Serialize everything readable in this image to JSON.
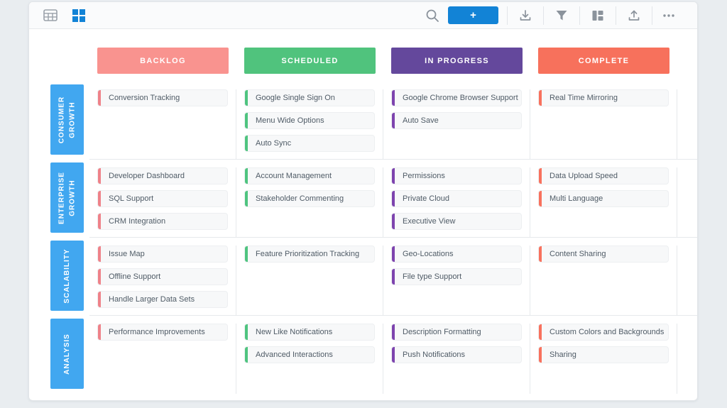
{
  "toolbar": {
    "view_switcher": [
      {
        "icon": "table-view-icon",
        "active": false
      },
      {
        "icon": "grid-view-icon",
        "active": true
      }
    ],
    "search_icon": "search-icon",
    "add_button_label": "+",
    "actions": [
      {
        "icon": "import-download-icon"
      },
      {
        "icon": "filter-icon"
      },
      {
        "icon": "layout-icon"
      },
      {
        "icon": "export-upload-icon"
      },
      {
        "icon": "more-options-icon"
      }
    ]
  },
  "colors": {
    "accent_blue": "#1283d6",
    "row_label_blue": "#41a7f0",
    "icon_gray": "#8b939c",
    "backlog": "#f9938f",
    "backlog_accent": "#ef8289",
    "scheduled": "#50c37d",
    "scheduled_accent": "#4ec47f",
    "in_progress": "#64489c",
    "in_progress_accent": "#7d43ae",
    "complete": "#f7715c",
    "complete_accent": "#f8715d"
  },
  "board": {
    "columns": [
      {
        "label": "BACKLOG",
        "color": "#f9938f",
        "accent": "#ef8289"
      },
      {
        "label": "SCHEDULED",
        "color": "#50c37d",
        "accent": "#4ec47f"
      },
      {
        "label": "IN PROGRESS",
        "color": "#64489c",
        "accent": "#7d43ae"
      },
      {
        "label": "COMPLETE",
        "color": "#f7715c",
        "accent": "#f8715d"
      }
    ],
    "rows": [
      {
        "label": "CONSUMER GROWTH",
        "cells": [
          [
            "Conversion Tracking"
          ],
          [
            "Google Single Sign On",
            "Menu Wide Options",
            "Auto Sync"
          ],
          [
            "Google Chrome Browser Support",
            "Auto Save"
          ],
          [
            "Real Time Mirroring"
          ]
        ]
      },
      {
        "label": "ENTERPRISE GROWTH",
        "cells": [
          [
            "Developer Dashboard",
            "SQL Support",
            "CRM Integration"
          ],
          [
            "Account Management",
            "Stakeholder Commenting"
          ],
          [
            "Permissions",
            "Private Cloud",
            "Executive View"
          ],
          [
            "Data Upload Speed",
            "Multi Language"
          ]
        ]
      },
      {
        "label": "SCALABILITY",
        "cells": [
          [
            "Issue Map",
            "Offline Support",
            "Handle Larger Data Sets"
          ],
          [
            "Feature Prioritization Tracking"
          ],
          [
            "Geo-Locations",
            "File type Support"
          ],
          [
            "Content Sharing"
          ]
        ]
      },
      {
        "label": "ANALYSIS",
        "cells": [
          [
            "Performance Improvements"
          ],
          [
            "New Like Notifications",
            "Advanced Interactions"
          ],
          [
            "Description Formatting",
            "Push Notifications"
          ],
          [
            "Custom Colors and Backgrounds",
            "Sharing"
          ]
        ]
      }
    ]
  }
}
